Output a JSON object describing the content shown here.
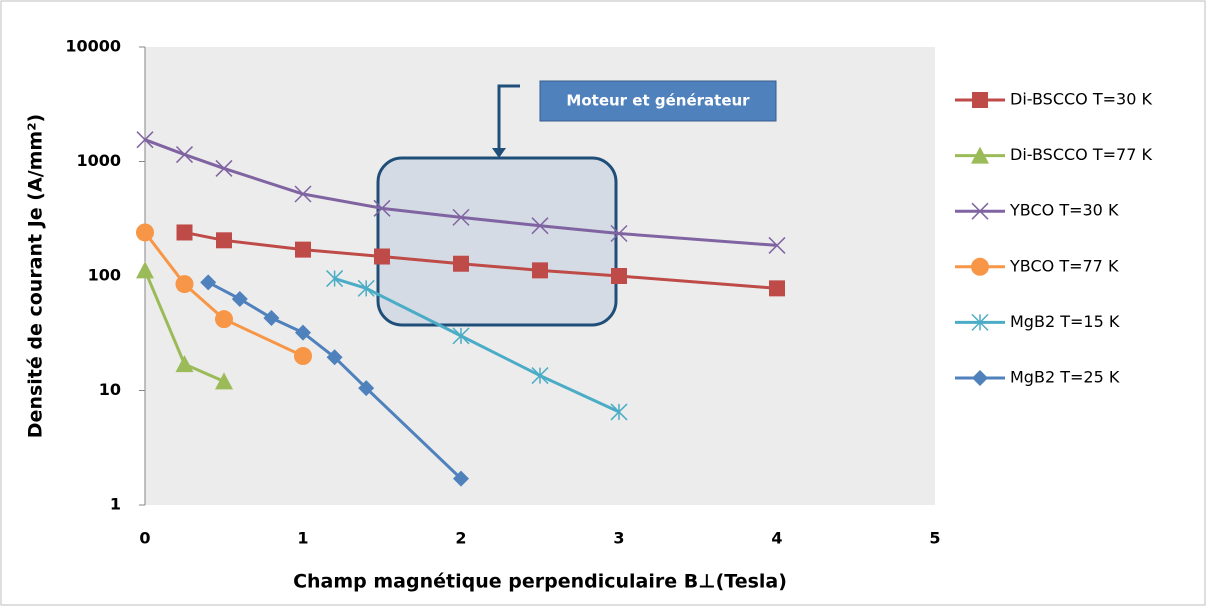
{
  "chart_data": {
    "type": "line",
    "log_y": true,
    "ylabel": "Densité de courant Je (A/mm²)",
    "xlabel": "Champ magnétique perpendiculaire B⊥(Tesla)",
    "annotation": "Moteur et générateur",
    "xlim": [
      0,
      5
    ],
    "xticks": [
      0,
      1,
      2,
      3,
      4,
      5
    ],
    "ylim": [
      1,
      10000
    ],
    "yticks": [
      1,
      10,
      100,
      1000,
      10000
    ],
    "legend": "right",
    "series": [
      {
        "name": "Di-BSCCO T=30 K",
        "color": "#be4b48",
        "marker": "square",
        "x": [
          0.25,
          0.5,
          1,
          1.5,
          2,
          2.5,
          3,
          4
        ],
        "values": [
          240,
          205,
          170,
          148,
          128,
          112,
          100,
          78
        ]
      },
      {
        "name": "Di-BSCCO T=77 K",
        "color": "#9bbb59",
        "marker": "triangle",
        "x": [
          0,
          0.25,
          0.5
        ],
        "values": [
          112,
          17,
          12
        ]
      },
      {
        "name": "YBCO T=30 K",
        "color": "#8064a2",
        "marker": "x",
        "x": [
          0,
          0.25,
          0.5,
          1,
          1.5,
          2,
          2.5,
          3,
          4
        ],
        "values": [
          1550,
          1150,
          870,
          520,
          390,
          325,
          275,
          235,
          185
        ]
      },
      {
        "name": "YBCO T=77 K",
        "color": "#f79646",
        "marker": "circle",
        "x": [
          0,
          0.25,
          0.5,
          1
        ],
        "values": [
          240,
          85,
          42,
          20
        ]
      },
      {
        "name": "MgB2 T=15 K",
        "color": "#4bacc6",
        "marker": "asterisk",
        "x": [
          1.2,
          1.4,
          2,
          2.5,
          3
        ],
        "values": [
          95,
          78,
          30,
          13.5,
          6.5
        ]
      },
      {
        "name": "MgB2 T=25 K",
        "color": "#4f81bd",
        "marker": "diamond",
        "x": [
          0.4,
          0.6,
          0.8,
          1,
          1.2,
          1.4,
          2
        ],
        "values": [
          88,
          63,
          43,
          32,
          19.5,
          10.5,
          1.7
        ]
      }
    ]
  }
}
